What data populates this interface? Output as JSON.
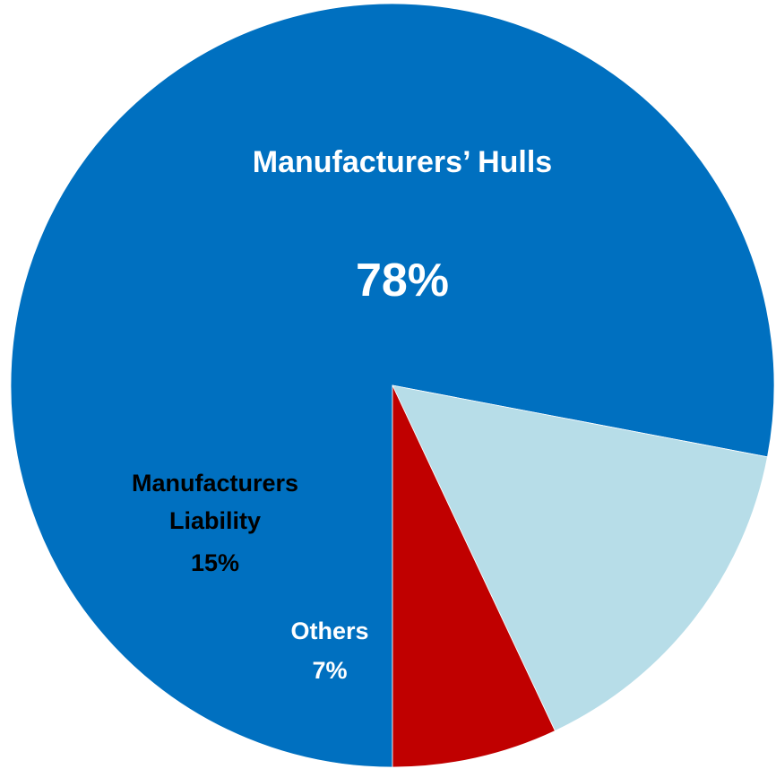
{
  "chart_data": {
    "type": "pie",
    "title": "",
    "start_direction": "bottom",
    "direction": "clockwise",
    "slices": [
      {
        "name": "Manufacturers’ Hulls",
        "value": 78,
        "color": "#0070C0",
        "label_lines": [
          "Manufacturers’ Hulls"
        ],
        "value_label": "78%",
        "label_color": "#FFFFFF"
      },
      {
        "name": "Manufacturers Liability",
        "value": 15,
        "color": "#B7DDE8",
        "label_lines": [
          "Manufacturers",
          "Liability"
        ],
        "value_label": "15%",
        "label_color": "#000000"
      },
      {
        "name": "Others",
        "value": 7,
        "color": "#C00000",
        "label_lines": [
          "Others"
        ],
        "value_label": "7%",
        "label_color": "#FFFFFF"
      }
    ]
  }
}
